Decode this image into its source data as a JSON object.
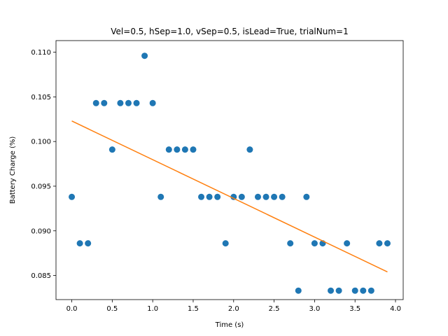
{
  "chart_data": {
    "type": "scatter",
    "title": "Vel=0.5, hSep=1.0, vSep=0.5, isLead=True, trialNum=1",
    "xlabel": "Time (s)",
    "ylabel": "Battery Charge (%)",
    "xlim": [
      -0.195,
      4.095
    ],
    "ylim": [
      0.0823,
      0.1113
    ],
    "xticks": [
      0.0,
      0.5,
      1.0,
      1.5,
      2.0,
      2.5,
      3.0,
      3.5,
      4.0
    ],
    "xtick_labels": [
      "0.0",
      "0.5",
      "1.0",
      "1.5",
      "2.0",
      "2.5",
      "3.0",
      "3.5",
      "4.0"
    ],
    "yticks": [
      0.085,
      0.09,
      0.095,
      0.1,
      0.105,
      0.11
    ],
    "ytick_labels": [
      "0.085",
      "0.090",
      "0.095",
      "0.100",
      "0.105",
      "0.110"
    ],
    "grid": false,
    "scatter_color": "#1f77b4",
    "fit_color": "#ff7f0e",
    "series": [
      {
        "kind": "scatter",
        "x": [
          0.0,
          0.1,
          0.2,
          0.3,
          0.4,
          0.5,
          0.6,
          0.7,
          0.8,
          0.9,
          1.0,
          1.1,
          1.2,
          1.3,
          1.4,
          1.5,
          1.6,
          1.7,
          1.8,
          1.9,
          2.0,
          2.1,
          2.2,
          2.3,
          2.4,
          2.5,
          2.6,
          2.7,
          2.8,
          2.9,
          3.0,
          3.1,
          3.2,
          3.3,
          3.4,
          3.5,
          3.6,
          3.7,
          3.8,
          3.9
        ],
        "y": [
          0.0938,
          0.0886,
          0.0886,
          0.1043,
          0.1043,
          0.0991,
          0.1043,
          0.1043,
          0.1043,
          0.1096,
          0.1043,
          0.0938,
          0.0991,
          0.0991,
          0.0991,
          0.0991,
          0.0938,
          0.0938,
          0.0938,
          0.0886,
          0.0938,
          0.0938,
          0.0991,
          0.0938,
          0.0938,
          0.0938,
          0.0938,
          0.0886,
          0.0833,
          0.0938,
          0.0886,
          0.0886,
          0.0833,
          0.0833,
          0.0886,
          0.0833,
          0.0833,
          0.0833,
          0.0886,
          0.0886
        ]
      },
      {
        "kind": "line",
        "x": [
          0.0,
          3.9
        ],
        "y": [
          0.1023,
          0.0854
        ]
      }
    ]
  }
}
